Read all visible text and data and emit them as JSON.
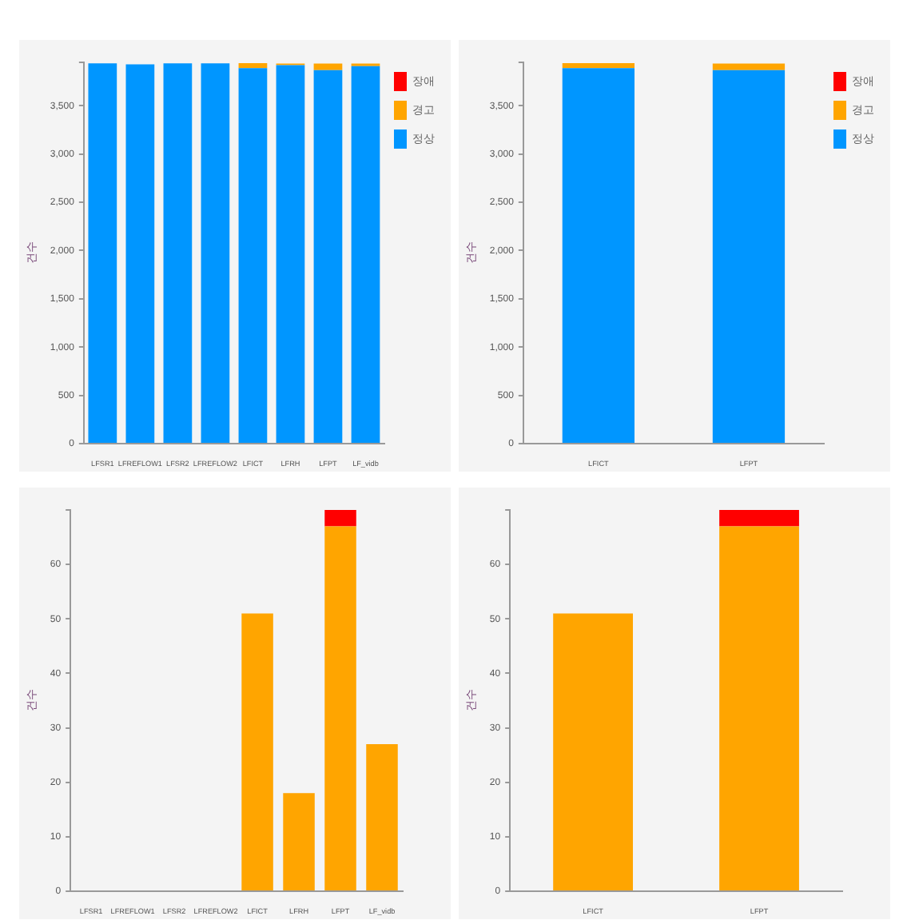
{
  "chart_data": [
    {
      "type": "bar",
      "stacked": true,
      "ylabel": "건수",
      "categories": [
        "LFSR1",
        "LFREFLOW1",
        "LFSR2",
        "LFREFLOW2",
        "LFICT",
        "LFRH",
        "LFPT",
        "LF_vidb"
      ],
      "series": [
        {
          "name": "정상",
          "color": "#0096ff",
          "values": [
            3940,
            3930,
            3940,
            3940,
            3890,
            3920,
            3870,
            3910
          ]
        },
        {
          "name": "경고",
          "color": "#ffa500",
          "values": [
            0,
            0,
            0,
            0,
            51,
            18,
            67,
            27
          ]
        },
        {
          "name": "장애",
          "color": "#ff0000",
          "values": [
            0,
            0,
            0,
            0,
            0,
            0,
            null,
            0
          ]
        }
      ],
      "ylim": [
        0,
        3950
      ],
      "yticks": [
        0,
        500,
        {
          "value": 1000,
          "label": "1,000"
        },
        {
          "value": 1500,
          "label": "1,500"
        },
        {
          "value": 2000,
          "label": "2,000"
        },
        {
          "value": 2500,
          "label": "2,500"
        },
        {
          "value": 3000,
          "label": "3,000"
        },
        {
          "value": 3500,
          "label": "3,500"
        },
        {
          "value": 3950,
          "label": null
        }
      ],
      "legend": "top right",
      "grid": false
    },
    {
      "type": "bar",
      "stacked": true,
      "ylabel": "건수",
      "categories": [
        "LFICT",
        "LFPT"
      ],
      "series": [
        {
          "name": "정상",
          "color": "#0096ff",
          "values": [
            3890,
            3870
          ]
        },
        {
          "name": "경고",
          "color": "#ffa500",
          "values": [
            51,
            67
          ]
        },
        {
          "name": "장애",
          "color": "#ff0000",
          "values": [
            0,
            null
          ]
        }
      ],
      "ylim": [
        0,
        3950
      ],
      "yticks": [
        0,
        500,
        {
          "value": 1000,
          "label": "1,000"
        },
        {
          "value": 1500,
          "label": "1,500"
        },
        {
          "value": 2000,
          "label": "2,000"
        },
        {
          "value": 2500,
          "label": "2,500"
        },
        {
          "value": 3000,
          "label": "3,000"
        },
        {
          "value": 3500,
          "label": "3,500"
        },
        {
          "value": 3950,
          "label": null
        }
      ],
      "legend": "top right",
      "grid": false
    },
    {
      "type": "bar",
      "stacked": true,
      "ylabel": "건수",
      "categories": [
        "LFSR1",
        "LFREFLOW1",
        "LFSR2",
        "LFREFLOW2",
        "LFICT",
        "LFRH",
        "LFPT",
        "LF_vidb"
      ],
      "series": [
        {
          "color": "#ffa500",
          "values": [
            0,
            0,
            0,
            0,
            51,
            18,
            67,
            27
          ]
        },
        {
          "color": "#ff0000",
          "values": [
            0,
            0,
            0,
            0,
            0,
            0,
            3,
            0
          ]
        }
      ],
      "ylim": [
        0,
        70
      ],
      "yticks": [
        0,
        10,
        20,
        30,
        40,
        50,
        60,
        {
          "value": 70,
          "label": null
        }
      ],
      "legend": false,
      "grid": false
    },
    {
      "type": "bar",
      "stacked": true,
      "ylabel": "건수",
      "categories": [
        "LFICT",
        "LFPT"
      ],
      "series": [
        {
          "color": "#ffa500",
          "values": [
            51,
            67
          ]
        },
        {
          "color": "#ff0000",
          "values": [
            0,
            3
          ]
        }
      ],
      "ylim": [
        0,
        70
      ],
      "yticks": [
        0,
        10,
        20,
        30,
        40,
        50,
        60,
        {
          "value": 70,
          "label": null
        }
      ],
      "legend": false,
      "grid": false
    }
  ]
}
